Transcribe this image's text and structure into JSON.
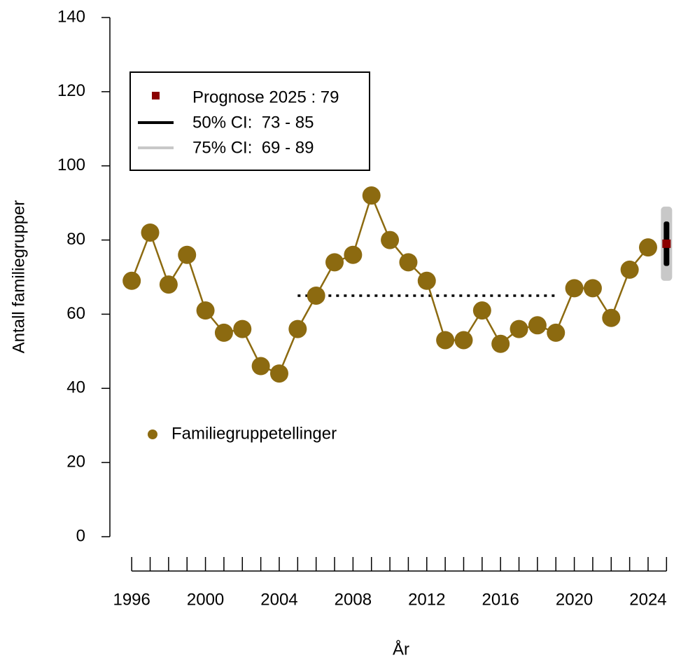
{
  "chart_data": {
    "type": "line",
    "y_label": "Antall familiegrupper",
    "x_label": "År",
    "x": [
      1996,
      1997,
      1998,
      1999,
      2000,
      2001,
      2002,
      2003,
      2004,
      2005,
      2006,
      2007,
      2008,
      2009,
      2010,
      2011,
      2012,
      2013,
      2014,
      2015,
      2016,
      2017,
      2018,
      2019,
      2020,
      2021,
      2022,
      2023,
      2024
    ],
    "series": [
      {
        "name": "Familiegruppetellinger",
        "color": "#8c6a10",
        "values": [
          69,
          82,
          68,
          76,
          61,
          55,
          56,
          46,
          44,
          56,
          65,
          74,
          76,
          92,
          80,
          74,
          69,
          53,
          53,
          61,
          52,
          56,
          57,
          55,
          67,
          67,
          59,
          72,
          78
        ]
      }
    ],
    "reference_line": {
      "value": 65,
      "x": [
        2005,
        2019
      ],
      "color": "#000000"
    },
    "forecast": {
      "x": 2025,
      "value": 79,
      "ci50": [
        73,
        85
      ],
      "ci75": [
        69,
        89
      ],
      "color": "#8b0000",
      "ci50_color": "#000000",
      "ci75_color": "#c8c8c8",
      "labels": [
        "Prognose 2025 : 79",
        "50% CI:  73 - 85",
        "75% CI:  69 - 89"
      ]
    },
    "xlim": [
      1995.5,
      2025.5
    ],
    "xticks": [
      1996,
      2000,
      2004,
      2008,
      2012,
      2016,
      2020,
      2024
    ],
    "xminorticks": [
      1996,
      1997,
      1998,
      1999,
      2000,
      2001,
      2002,
      2003,
      2004,
      2005,
      2006,
      2007,
      2008,
      2009,
      2010,
      2011,
      2012,
      2013,
      2014,
      2015,
      2016,
      2017,
      2018,
      2019,
      2020,
      2021,
      2022,
      2023,
      2024,
      2025
    ],
    "ylim": [
      0,
      140
    ],
    "yticks": [
      0,
      20,
      40,
      60,
      80,
      100,
      120,
      140
    ]
  }
}
